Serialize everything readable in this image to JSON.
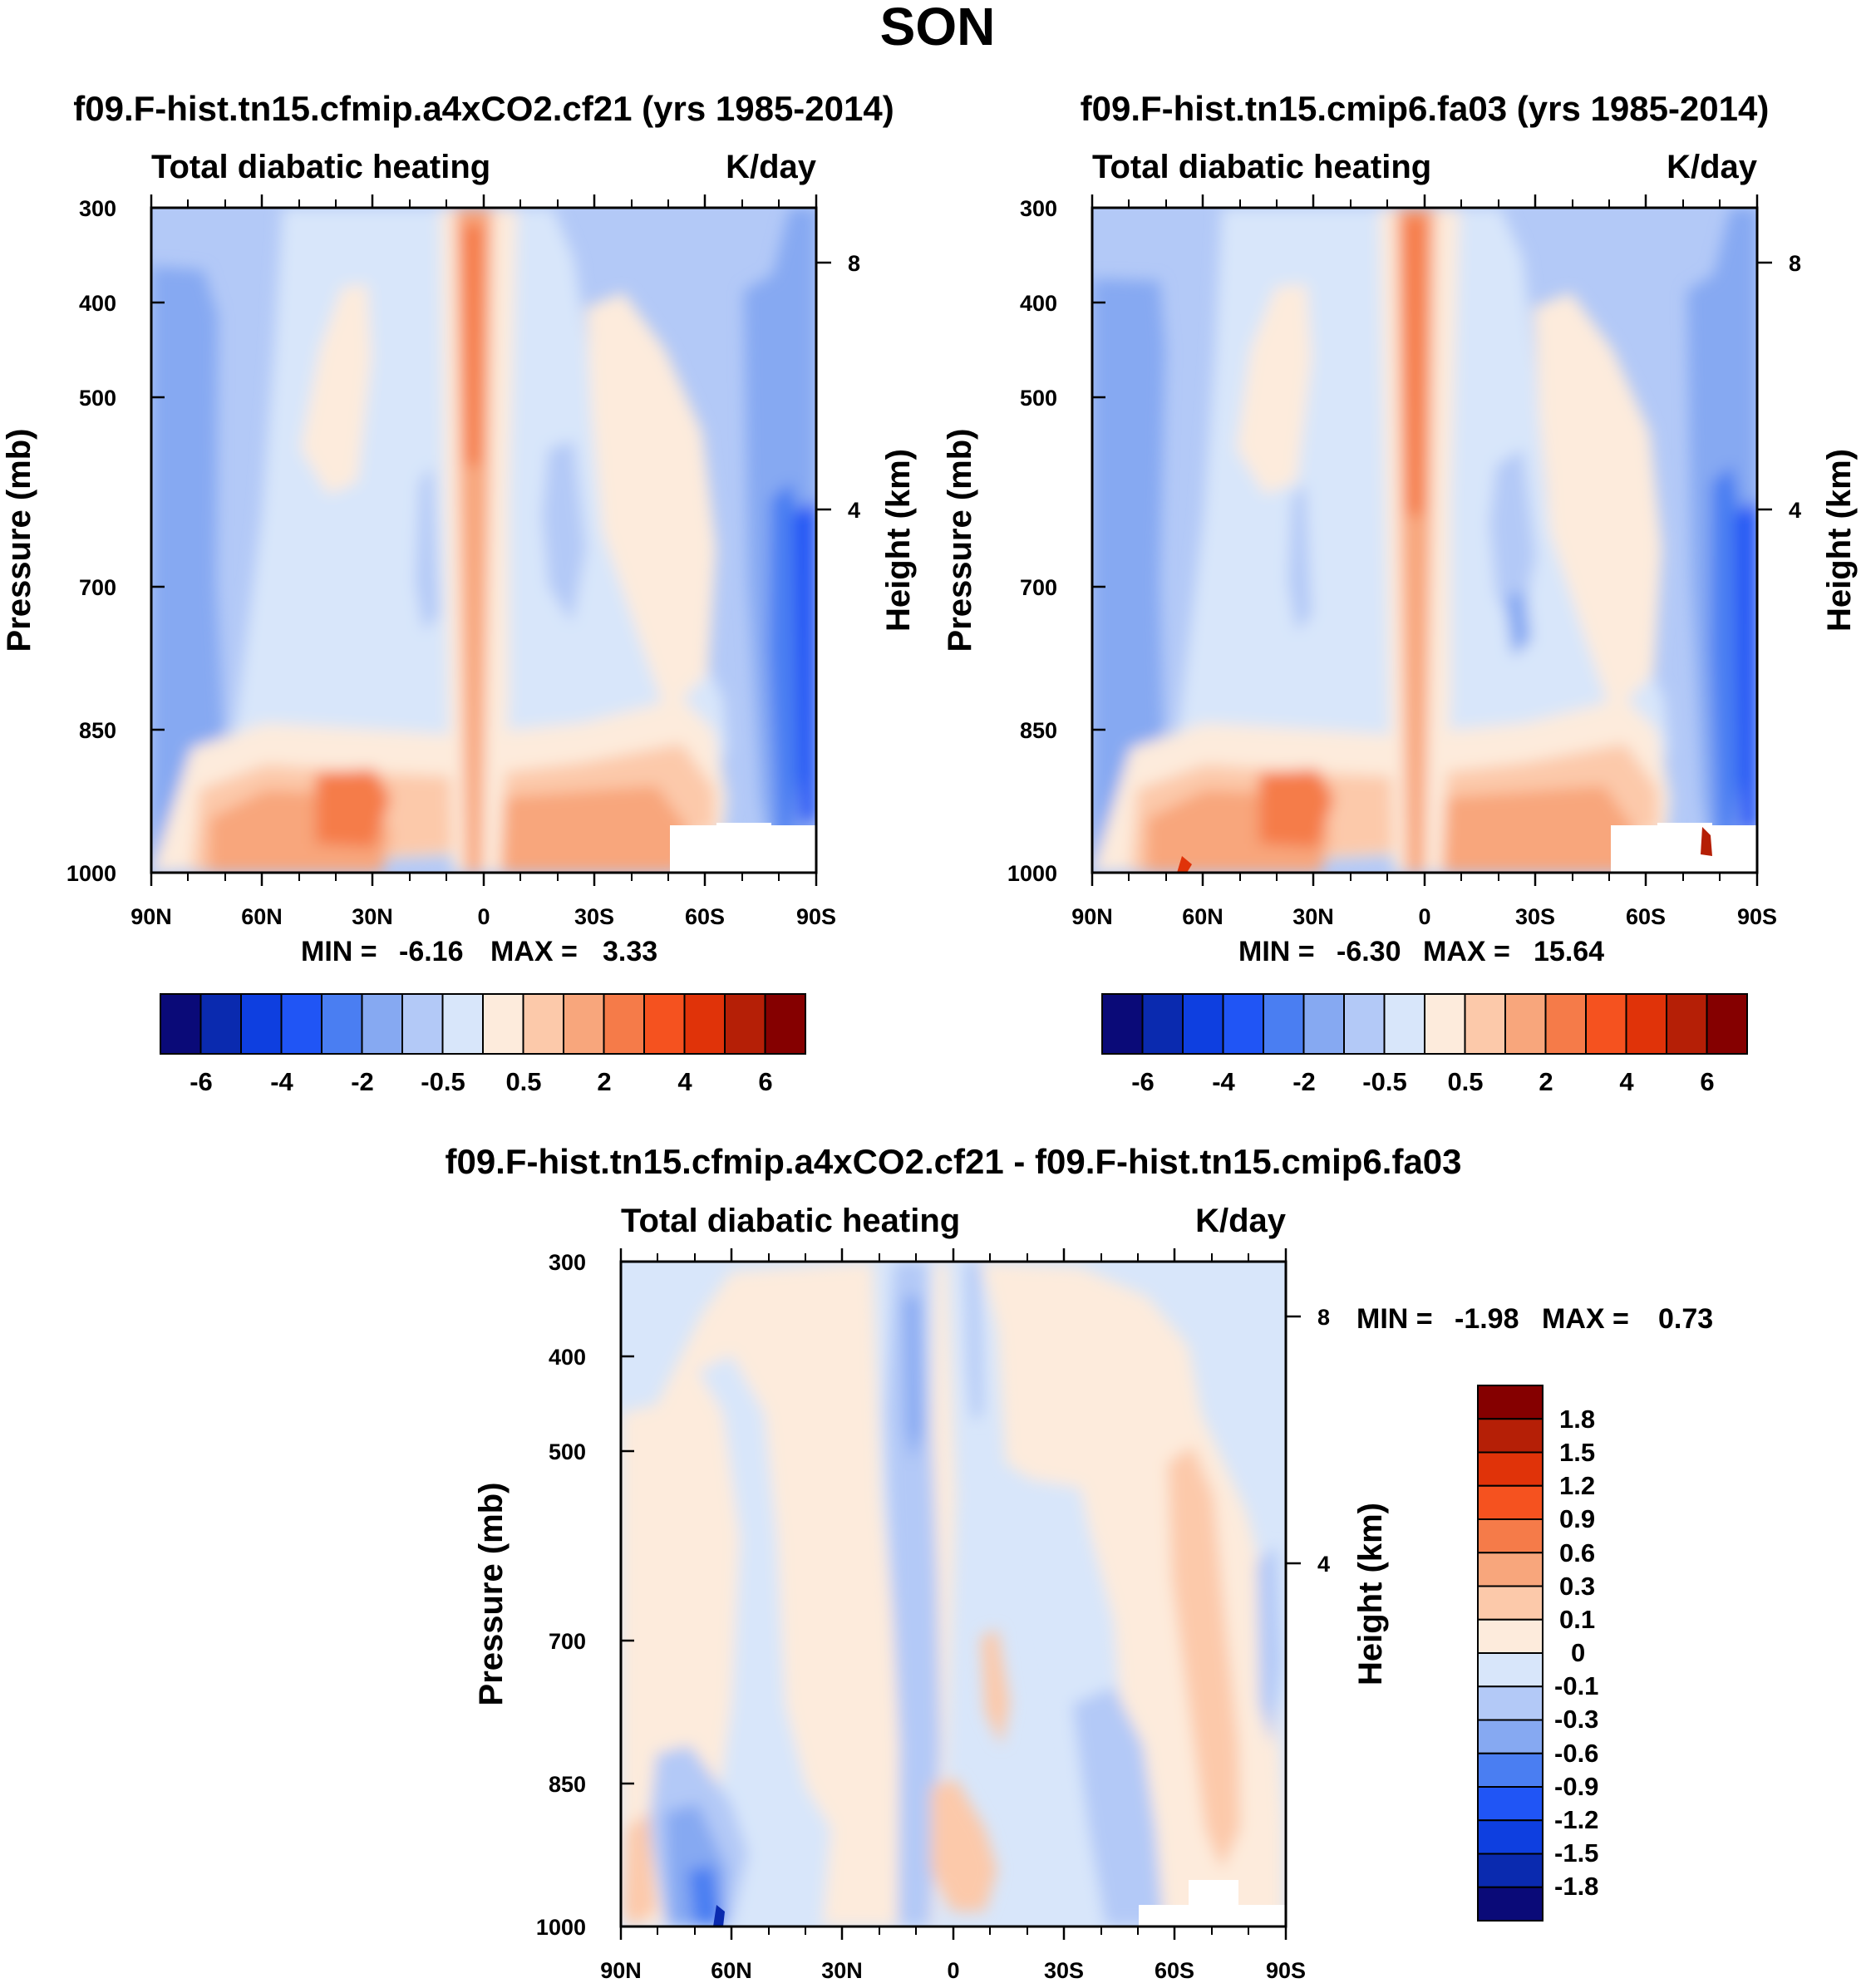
{
  "figure_title": "SON",
  "chart_data": [
    {
      "type": "heatmap",
      "id": "p1",
      "title": "f09.F-hist.tn15.cfmip.a4xCO2.cf21 (yrs 1985-2014)",
      "left_label": "Total diabatic heating",
      "right_label": "K/day",
      "ylabel": "Pressure (mb)",
      "y2label": "Height (km)",
      "x_ticks": [
        "90N",
        "60N",
        "30N",
        "0",
        "30S",
        "60S",
        "90S"
      ],
      "y_ticks": [
        "300",
        "400",
        "500",
        "700",
        "850",
        "1000"
      ],
      "y2_ticks": [
        "8",
        "4"
      ],
      "stats": {
        "min_label": "MIN =",
        "min": "-6.16",
        "max_label": "MAX =",
        "max": "3.33"
      },
      "colorbar": {
        "orientation": "horizontal",
        "labels": [
          "-6",
          "-4",
          "-2",
          "-0.5",
          "0.5",
          "2",
          "4",
          "6"
        ],
        "colors": [
          "#0a0a78",
          "#0a2aaf",
          "#0e3fe0",
          "#2055f5",
          "#4a7ef2",
          "#86a9f2",
          "#b3c9f7",
          "#d8e6fa",
          "#fdebdc",
          "#fcc9aa",
          "#f8a67c",
          "#f57b49",
          "#f5521f",
          "#e03309",
          "#b51f06",
          "#850000"
        ]
      }
    },
    {
      "type": "heatmap",
      "id": "p2",
      "title": "f09.F-hist.tn15.cmip6.fa03 (yrs 1985-2014)",
      "left_label": "Total diabatic heating",
      "right_label": "K/day",
      "ylabel": "Pressure (mb)",
      "y2label": "Height (km)",
      "x_ticks": [
        "90N",
        "60N",
        "30N",
        "0",
        "30S",
        "60S",
        "90S"
      ],
      "y_ticks": [
        "300",
        "400",
        "500",
        "700",
        "850",
        "1000"
      ],
      "y2_ticks": [
        "8",
        "4"
      ],
      "stats": {
        "min_label": "MIN =",
        "min": "-6.30",
        "max_label": "MAX =",
        "max": "15.64"
      },
      "colorbar": {
        "orientation": "horizontal",
        "labels": [
          "-6",
          "-4",
          "-2",
          "-0.5",
          "0.5",
          "2",
          "4",
          "6"
        ],
        "colors": [
          "#0a0a78",
          "#0a2aaf",
          "#0e3fe0",
          "#2055f5",
          "#4a7ef2",
          "#86a9f2",
          "#b3c9f7",
          "#d8e6fa",
          "#fdebdc",
          "#fcc9aa",
          "#f8a67c",
          "#f57b49",
          "#f5521f",
          "#e03309",
          "#b51f06",
          "#850000"
        ]
      }
    },
    {
      "type": "heatmap",
      "id": "p3",
      "title": "f09.F-hist.tn15.cfmip.a4xCO2.cf21 - f09.F-hist.tn15.cmip6.fa03",
      "left_label": "Total diabatic heating",
      "right_label": "K/day",
      "ylabel": "Pressure (mb)",
      "y2label": "Height (km)",
      "x_ticks": [
        "90N",
        "60N",
        "30N",
        "0",
        "30S",
        "60S",
        "90S"
      ],
      "y_ticks": [
        "300",
        "400",
        "500",
        "700",
        "850",
        "1000"
      ],
      "y2_ticks": [
        "8",
        "4"
      ],
      "stats": {
        "min_label": "MIN =",
        "min": "-1.98",
        "max_label": "MAX =",
        "max": "0.73"
      },
      "colorbar": {
        "orientation": "vertical",
        "labels": [
          "1.8",
          "1.5",
          "1.2",
          "0.9",
          "0.6",
          "0.3",
          "0.1",
          "0",
          "-0.1",
          "-0.3",
          "-0.6",
          "-0.9",
          "-1.2",
          "-1.5",
          "-1.8"
        ],
        "colors": [
          "#850000",
          "#b51f06",
          "#e03309",
          "#f5521f",
          "#f57b49",
          "#f8a67c",
          "#fcc9aa",
          "#fdebdc",
          "#d8e6fa",
          "#b3c9f7",
          "#86a9f2",
          "#4a7ef2",
          "#2055f5",
          "#0e3fe0",
          "#0a2aaf",
          "#0a0a78"
        ]
      }
    }
  ]
}
